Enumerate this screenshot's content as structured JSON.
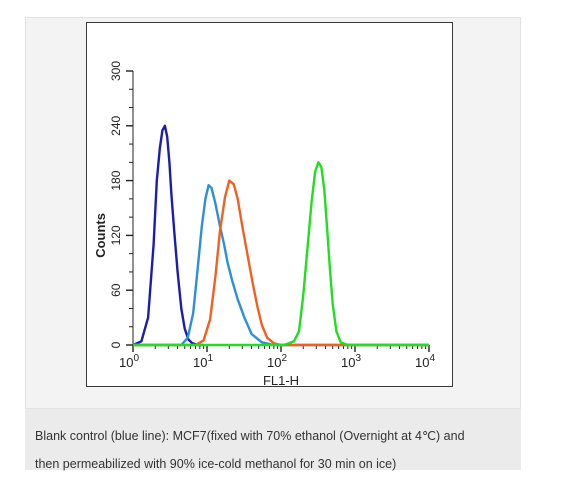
{
  "chart_data": {
    "type": "line",
    "title": "",
    "xlabel": "FL1-H",
    "ylabel": "Counts",
    "xscale": "log",
    "xlim": [
      1,
      10000
    ],
    "ylim": [
      0,
      300
    ],
    "xticks": [
      1,
      10,
      100,
      1000,
      10000
    ],
    "xtick_labels": [
      {
        "base": "10",
        "exp": "0"
      },
      {
        "base": "10",
        "exp": "1"
      },
      {
        "base": "10",
        "exp": "2"
      },
      {
        "base": "10",
        "exp": "3"
      },
      {
        "base": "10",
        "exp": "4"
      }
    ],
    "yticks": [
      0,
      60,
      120,
      180,
      240,
      300
    ],
    "ytick_labels": [
      "0",
      "60",
      "120",
      "180",
      "240",
      "300"
    ],
    "grid": false,
    "legend": "none",
    "series": [
      {
        "color": "#1c1cb0",
        "x": [
          1,
          1.3,
          1.6,
          1.9,
          2.1,
          2.3,
          2.5,
          2.7,
          2.9,
          3.1,
          3.3,
          3.6,
          4.0,
          4.5,
          5.0,
          5.6,
          6.3,
          7.5,
          9
        ],
        "y": [
          0,
          4,
          30,
          110,
          180,
          215,
          235,
          240,
          228,
          200,
          165,
          125,
          80,
          40,
          18,
          6,
          2,
          0,
          0
        ]
      },
      {
        "color": "#2e8fd6",
        "x": [
          1,
          4.5,
          5.5,
          6.5,
          7.5,
          8.5,
          9.5,
          10.5,
          11.5,
          13,
          15,
          17,
          19,
          22,
          26,
          32,
          40,
          55,
          80,
          10000
        ],
        "y": [
          0,
          0,
          8,
          35,
          85,
          130,
          160,
          175,
          172,
          155,
          130,
          110,
          90,
          70,
          50,
          30,
          12,
          3,
          0,
          0
        ]
      },
      {
        "color": "#f06020",
        "x": [
          1,
          7,
          9,
          11,
          13,
          15,
          17.5,
          20,
          23,
          26,
          30,
          35,
          41,
          48,
          55,
          65,
          80,
          100,
          10000
        ],
        "y": [
          0,
          0,
          5,
          28,
          75,
          125,
          162,
          180,
          176,
          160,
          130,
          100,
          70,
          42,
          22,
          8,
          2,
          0,
          0
        ]
      },
      {
        "color": "#22dd22",
        "x": [
          1,
          110,
          150,
          175,
          200,
          230,
          260,
          290,
          320,
          350,
          385,
          420,
          460,
          500,
          560,
          640,
          800,
          10000
        ],
        "y": [
          0,
          0,
          4,
          15,
          55,
          110,
          158,
          190,
          200,
          195,
          170,
          128,
          82,
          45,
          15,
          3,
          0,
          0
        ]
      }
    ]
  },
  "caption": {
    "line1": "Blank control (blue line): MCF7(fixed with 70% ethanol (Overnight at 4℃) and",
    "line2": "then permeabilized with 90% ice-cold methanol for 30 min on ice)"
  }
}
